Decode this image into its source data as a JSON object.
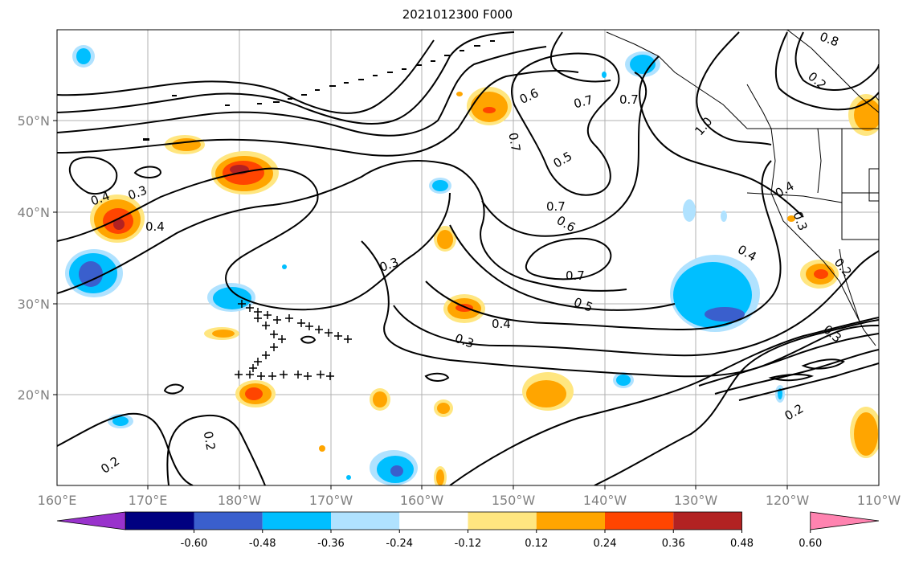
{
  "title": "2021012300 F000",
  "map": {
    "x_ticks": [
      "160°E",
      "170°E",
      "180°W",
      "170°W",
      "160°W",
      "150°W",
      "140°W",
      "130°W",
      "120°W",
      "110°W"
    ],
    "y_ticks": [
      "50°N",
      "40°N",
      "30°N",
      "20°N"
    ],
    "grid": true
  },
  "colorbar": {
    "ticks": [
      "-0.60",
      "-0.48",
      "-0.36",
      "-0.24",
      "-0.12",
      "0.12",
      "0.24",
      "0.36",
      "0.48",
      "0.60"
    ],
    "colors": [
      "#9932cc",
      "#000080",
      "#3a5fcd",
      "#00bfff",
      "#b0e2ff",
      "#ffffff",
      "#ffe680",
      "#ffa500",
      "#ff4500",
      "#b22222",
      "#ff83b0"
    ],
    "extend": "both"
  },
  "contour_labels": [
    "0.4",
    "0.3",
    "0.4",
    "0.6",
    "0.7",
    "0.7",
    "0.7",
    "0.5",
    "0.7",
    "0.6",
    "0.7",
    "0.3",
    "0.5",
    "0.4",
    "0.3",
    "0.2",
    "0.2",
    "0.4",
    "0.3",
    "0.2",
    "0.4",
    "1.0",
    "0.8",
    "0.2",
    "0.2",
    "0.3"
  ]
}
